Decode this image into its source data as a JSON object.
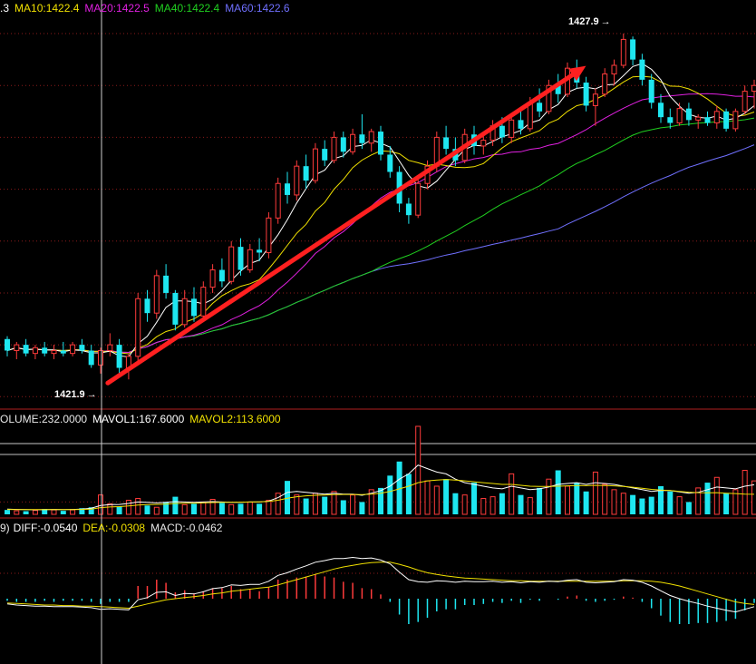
{
  "colors": {
    "background": "#000000",
    "up": "#ff3b3b",
    "down": "#1ee6f0",
    "ma5": "#ffffff",
    "ma10": "#f0e000",
    "ma20": "#e020e0",
    "ma40": "#20d020",
    "ma60": "#7070ff",
    "arrow": "#ff2020",
    "grid": "#8b1a1a"
  },
  "price_legend": {
    "ma5_prefix": ".3",
    "ma10": "MA10:1422.4",
    "ma20": "MA20:1422.5",
    "ma40": "MA40:1422.4",
    "ma60": "MA60:1422.6"
  },
  "volume_legend": {
    "volume": "OLUME:232.0000",
    "mavol1": "MAVOL1:167.6000",
    "mavol2": "MAVOL2:113.6000"
  },
  "macd_legend": {
    "params": "9)",
    "diff": "DIFF:-0.0540",
    "dea": "DEA:-0.0308",
    "macd": "MACD:-0.0462"
  },
  "annotations": {
    "low": "1421.9",
    "high": "1427.9",
    "arrow_glyph": "→"
  },
  "chart_data": [
    {
      "type": "candlestick",
      "title": "",
      "y_range": [
        1421.4,
        1428.2
      ],
      "grid": true,
      "price_lines": [
        1421.6,
        1422.5,
        1423.4,
        1424.3,
        1425.2,
        1426.1,
        1427.0,
        1427.9
      ],
      "max_price": 1427.9,
      "min_price": 1421.9,
      "cursor_bar_index": 10,
      "candles": [
        [
          1422.6,
          1422.65,
          1422.3,
          1422.4
        ],
        [
          1422.4,
          1422.55,
          1422.25,
          1422.5
        ],
        [
          1422.5,
          1422.6,
          1422.3,
          1422.35
        ],
        [
          1422.35,
          1422.5,
          1422.25,
          1422.45
        ],
        [
          1422.45,
          1422.55,
          1422.3,
          1422.35
        ],
        [
          1422.35,
          1422.5,
          1422.25,
          1422.4
        ],
        [
          1422.4,
          1422.55,
          1422.3,
          1422.35
        ],
        [
          1422.35,
          1422.55,
          1422.3,
          1422.5
        ],
        [
          1422.5,
          1422.6,
          1422.35,
          1422.4
        ],
        [
          1422.4,
          1422.5,
          1422.1,
          1422.15
        ],
        [
          1422.15,
          1422.45,
          1422.0,
          1422.4
        ],
        [
          1422.4,
          1422.7,
          1422.3,
          1422.5
        ],
        [
          1422.5,
          1422.6,
          1422.0,
          1422.1
        ],
        [
          1422.1,
          1422.35,
          1421.9,
          1422.3
        ],
        [
          1422.3,
          1423.4,
          1422.2,
          1423.3
        ],
        [
          1423.3,
          1423.45,
          1422.9,
          1423.05
        ],
        [
          1423.05,
          1423.8,
          1422.95,
          1423.7
        ],
        [
          1423.7,
          1423.9,
          1423.3,
          1423.4
        ],
        [
          1423.4,
          1423.45,
          1422.75,
          1422.85
        ],
        [
          1422.85,
          1423.45,
          1422.8,
          1423.3
        ],
        [
          1423.3,
          1423.5,
          1422.9,
          1423.0
        ],
        [
          1423.0,
          1423.6,
          1422.95,
          1423.5
        ],
        [
          1423.5,
          1423.9,
          1423.4,
          1423.8
        ],
        [
          1423.8,
          1424.0,
          1423.5,
          1423.6
        ],
        [
          1423.6,
          1424.3,
          1423.55,
          1424.2
        ],
        [
          1424.2,
          1424.35,
          1423.7,
          1423.8
        ],
        [
          1423.8,
          1424.25,
          1423.75,
          1424.15
        ],
        [
          1424.15,
          1424.35,
          1423.95,
          1424.1
        ],
        [
          1424.1,
          1424.8,
          1424.0,
          1424.7
        ],
        [
          1424.7,
          1425.4,
          1424.6,
          1425.3
        ],
        [
          1425.3,
          1425.5,
          1424.95,
          1425.1
        ],
        [
          1425.1,
          1425.7,
          1425.0,
          1425.6
        ],
        [
          1425.6,
          1425.8,
          1425.2,
          1425.35
        ],
        [
          1425.35,
          1426.0,
          1425.3,
          1425.9
        ],
        [
          1425.9,
          1426.05,
          1425.6,
          1425.7
        ],
        [
          1425.7,
          1426.2,
          1425.65,
          1426.1
        ],
        [
          1426.1,
          1426.2,
          1425.75,
          1425.85
        ],
        [
          1425.85,
          1426.25,
          1425.8,
          1426.15
        ],
        [
          1426.15,
          1426.5,
          1425.9,
          1426.0
        ],
        [
          1426.0,
          1426.25,
          1425.85,
          1426.2
        ],
        [
          1426.2,
          1426.3,
          1425.7,
          1425.8
        ],
        [
          1425.8,
          1425.95,
          1425.4,
          1425.5
        ],
        [
          1425.5,
          1425.6,
          1424.8,
          1424.95
        ],
        [
          1424.95,
          1425.05,
          1424.6,
          1424.75
        ],
        [
          1424.75,
          1425.4,
          1424.7,
          1425.3
        ],
        [
          1425.3,
          1425.7,
          1425.2,
          1425.6
        ],
        [
          1425.6,
          1426.2,
          1425.5,
          1426.1
        ],
        [
          1426.1,
          1426.3,
          1425.8,
          1425.9
        ],
        [
          1425.9,
          1426.1,
          1425.6,
          1425.7
        ],
        [
          1425.7,
          1426.25,
          1425.65,
          1426.15
        ],
        [
          1426.15,
          1426.3,
          1425.8,
          1425.95
        ],
        [
          1425.95,
          1426.15,
          1425.8,
          1426.05
        ],
        [
          1426.05,
          1426.4,
          1425.95,
          1426.3
        ],
        [
          1426.3,
          1426.45,
          1426.0,
          1426.1
        ],
        [
          1426.1,
          1426.5,
          1426.0,
          1426.4
        ],
        [
          1426.4,
          1426.6,
          1426.15,
          1426.25
        ],
        [
          1426.25,
          1426.8,
          1426.2,
          1426.7
        ],
        [
          1426.7,
          1426.95,
          1426.45,
          1426.55
        ],
        [
          1426.55,
          1427.1,
          1426.5,
          1427.0
        ],
        [
          1427.0,
          1427.2,
          1426.7,
          1426.85
        ],
        [
          1426.85,
          1427.4,
          1426.8,
          1427.3
        ],
        [
          1427.3,
          1427.45,
          1426.95,
          1427.05
        ],
        [
          1427.05,
          1427.15,
          1426.55,
          1426.65
        ],
        [
          1426.65,
          1426.95,
          1426.3,
          1426.85
        ],
        [
          1426.85,
          1427.3,
          1426.8,
          1427.2
        ],
        [
          1427.2,
          1427.45,
          1427.0,
          1427.35
        ],
        [
          1427.35,
          1427.9,
          1427.3,
          1427.8
        ],
        [
          1427.8,
          1427.85,
          1427.35,
          1427.45
        ],
        [
          1427.45,
          1427.55,
          1427.0,
          1427.1
        ],
        [
          1427.1,
          1427.2,
          1426.6,
          1426.7
        ],
        [
          1426.7,
          1426.85,
          1426.35,
          1426.45
        ],
        [
          1426.45,
          1426.6,
          1426.25,
          1426.35
        ],
        [
          1426.35,
          1426.7,
          1426.3,
          1426.6
        ],
        [
          1426.6,
          1426.7,
          1426.3,
          1426.4
        ],
        [
          1426.4,
          1426.5,
          1426.25,
          1426.45
        ],
        [
          1426.45,
          1426.55,
          1426.3,
          1426.35
        ],
        [
          1426.35,
          1426.65,
          1426.25,
          1426.55
        ],
        [
          1426.55,
          1426.6,
          1426.2,
          1426.25
        ],
        [
          1426.25,
          1426.6,
          1426.2,
          1426.55
        ],
        [
          1426.55,
          1427.0,
          1426.5,
          1426.9
        ],
        [
          1426.9,
          1427.1,
          1426.6,
          1427.0
        ]
      ]
    },
    {
      "type": "bar",
      "title": "",
      "y_range": [
        0,
        500
      ],
      "volume_lines": [
        70,
        340
      ],
      "volumes": [
        25,
        20,
        18,
        22,
        30,
        25,
        20,
        25,
        35,
        40,
        110,
        60,
        45,
        80,
        90,
        50,
        40,
        70,
        100,
        55,
        60,
        70,
        85,
        65,
        55,
        60,
        70,
        60,
        80,
        120,
        190,
        110,
        90,
        120,
        100,
        130,
        80,
        110,
        70,
        140,
        150,
        220,
        300,
        230,
        500,
        190,
        160,
        200,
        120,
        110,
        180,
        90,
        100,
        120,
        230,
        110,
        95,
        150,
        200,
        250,
        160,
        180,
        130,
        240,
        170,
        140,
        120,
        110,
        90,
        100,
        160,
        130,
        100,
        70,
        150,
        180,
        210,
        120,
        140,
        250,
        190
      ],
      "mavol1": [
        30,
        28,
        27,
        26,
        27,
        28,
        27,
        28,
        30,
        35,
        50,
        55,
        56,
        62,
        70,
        68,
        65,
        68,
        72,
        70,
        68,
        70,
        72,
        70,
        68,
        68,
        70,
        70,
        75,
        95,
        125,
        130,
        125,
        120,
        115,
        120,
        115,
        115,
        108,
        120,
        135,
        160,
        200,
        230,
        280,
        260,
        240,
        230,
        200,
        180,
        170,
        160,
        150,
        145,
        160,
        150,
        140,
        145,
        155,
        170,
        175,
        180,
        170,
        180,
        175,
        170,
        160,
        150,
        140,
        130,
        135,
        135,
        128,
        120,
        125,
        140,
        155,
        150,
        145,
        160,
        168
      ],
      "mavol2": [
        28,
        27,
        27,
        27,
        27,
        27,
        27,
        27,
        28,
        30,
        38,
        42,
        44,
        48,
        53,
        55,
        56,
        58,
        62,
        63,
        63,
        65,
        67,
        68,
        68,
        69,
        70,
        71,
        73,
        80,
        92,
        100,
        105,
        108,
        110,
        112,
        113,
        113,
        112,
        115,
        120,
        130,
        145,
        160,
        180,
        190,
        195,
        198,
        195,
        190,
        185,
        180,
        175,
        170,
        170,
        165,
        160,
        158,
        158,
        160,
        162,
        164,
        163,
        165,
        164,
        162,
        158,
        154,
        148,
        142,
        138,
        135,
        130,
        126,
        123,
        122,
        123,
        120,
        118,
        115,
        114
      ]
    },
    {
      "type": "line",
      "title": "",
      "y_range": [
        -0.12,
        0.12
      ],
      "macd_lines": [
        0
      ],
      "diff": [
        -0.01,
        -0.012,
        -0.013,
        -0.014,
        -0.014,
        -0.015,
        -0.015,
        -0.015,
        -0.016,
        -0.017,
        -0.02,
        -0.019,
        -0.02,
        -0.021,
        -0.002,
        0.002,
        0.012,
        0.013,
        0.006,
        0.01,
        0.009,
        0.013,
        0.019,
        0.021,
        0.026,
        0.025,
        0.027,
        0.027,
        0.033,
        0.044,
        0.049,
        0.056,
        0.062,
        0.069,
        0.072,
        0.076,
        0.076,
        0.078,
        0.076,
        0.077,
        0.073,
        0.066,
        0.05,
        0.036,
        0.032,
        0.031,
        0.034,
        0.033,
        0.031,
        0.033,
        0.032,
        0.032,
        0.033,
        0.031,
        0.032,
        0.03,
        0.032,
        0.031,
        0.033,
        0.032,
        0.035,
        0.036,
        0.031,
        0.03,
        0.031,
        0.032,
        0.036,
        0.035,
        0.031,
        0.024,
        0.015,
        0.006,
        0.0,
        -0.005,
        -0.009,
        -0.014,
        -0.018,
        -0.022,
        -0.025,
        -0.02,
        -0.015
      ],
      "dea": [
        -0.008,
        -0.009,
        -0.01,
        -0.011,
        -0.012,
        -0.012,
        -0.013,
        -0.013,
        -0.014,
        -0.014,
        -0.015,
        -0.016,
        -0.017,
        -0.018,
        -0.014,
        -0.01,
        -0.006,
        -0.002,
        0.0,
        0.002,
        0.004,
        0.006,
        0.009,
        0.011,
        0.014,
        0.016,
        0.018,
        0.02,
        0.022,
        0.026,
        0.031,
        0.036,
        0.041,
        0.046,
        0.051,
        0.056,
        0.06,
        0.063,
        0.066,
        0.068,
        0.069,
        0.069,
        0.065,
        0.06,
        0.054,
        0.049,
        0.046,
        0.043,
        0.041,
        0.039,
        0.038,
        0.037,
        0.036,
        0.035,
        0.034,
        0.034,
        0.033,
        0.033,
        0.033,
        0.033,
        0.033,
        0.033,
        0.033,
        0.033,
        0.033,
        0.033,
        0.034,
        0.034,
        0.034,
        0.033,
        0.031,
        0.028,
        0.024,
        0.019,
        0.014,
        0.009,
        0.004,
        -0.001,
        -0.006,
        -0.009,
        -0.011
      ],
      "macd": [
        -0.004,
        -0.006,
        -0.006,
        -0.006,
        -0.004,
        -0.006,
        -0.004,
        -0.004,
        -0.004,
        -0.006,
        -0.01,
        -0.006,
        -0.006,
        -0.006,
        0.024,
        0.024,
        0.036,
        0.03,
        0.012,
        0.016,
        0.01,
        0.014,
        0.02,
        0.02,
        0.024,
        0.018,
        0.018,
        0.014,
        0.022,
        0.036,
        0.036,
        0.04,
        0.042,
        0.046,
        0.042,
        0.04,
        0.032,
        0.03,
        0.02,
        0.018,
        0.008,
        -0.006,
        -0.03,
        -0.048,
        -0.044,
        -0.036,
        -0.024,
        -0.02,
        -0.02,
        -0.012,
        -0.012,
        -0.01,
        -0.006,
        -0.008,
        -0.004,
        -0.008,
        -0.002,
        -0.004,
        0.0,
        -0.002,
        0.004,
        0.006,
        -0.004,
        -0.006,
        -0.004,
        -0.002,
        0.004,
        0.002,
        -0.006,
        -0.018,
        -0.032,
        -0.044,
        -0.048,
        -0.048,
        -0.046,
        -0.046,
        -0.044,
        -0.042,
        -0.038,
        -0.022,
        -0.008
      ]
    }
  ]
}
